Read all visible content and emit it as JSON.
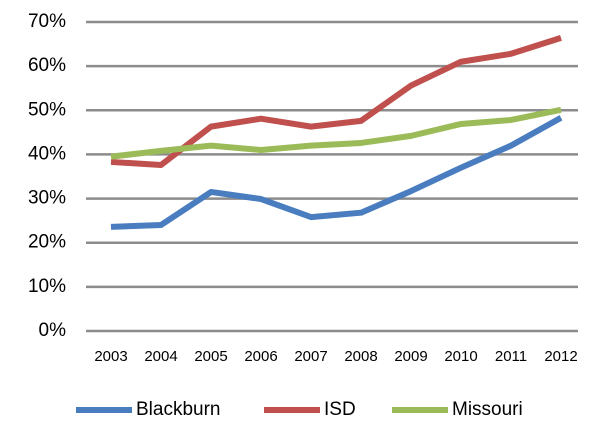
{
  "chart_data": {
    "type": "line",
    "categories": [
      "2003",
      "2004",
      "2005",
      "2006",
      "2007",
      "2008",
      "2009",
      "2010",
      "2011",
      "2012"
    ],
    "series": [
      {
        "name": "Blackburn",
        "color": "#4a7dbf",
        "values": [
          23.6,
          24.0,
          31.5,
          29.9,
          25.8,
          26.8,
          31.7,
          37.0,
          42.0,
          48.3
        ]
      },
      {
        "name": "ISD",
        "color": "#c0504d",
        "values": [
          38.3,
          37.6,
          46.3,
          48.1,
          46.3,
          47.6,
          55.6,
          61.0,
          62.8,
          66.4
        ]
      },
      {
        "name": "Missouri",
        "color": "#9bbb59",
        "values": [
          39.5,
          40.8,
          42.0,
          41.0,
          42.0,
          42.6,
          44.2,
          46.9,
          47.8,
          50.1
        ]
      }
    ],
    "ylim": [
      0,
      70
    ],
    "yticks": [
      {
        "value": 0,
        "label": "0%"
      },
      {
        "value": 10,
        "label": "10%"
      },
      {
        "value": 20,
        "label": "20%"
      },
      {
        "value": 30,
        "label": "30%"
      },
      {
        "value": 40,
        "label": "40%"
      },
      {
        "value": 50,
        "label": "50%"
      },
      {
        "value": 60,
        "label": "60%"
      },
      {
        "value": 70,
        "label": "70%"
      }
    ],
    "grid": true,
    "legend": "bottom"
  }
}
